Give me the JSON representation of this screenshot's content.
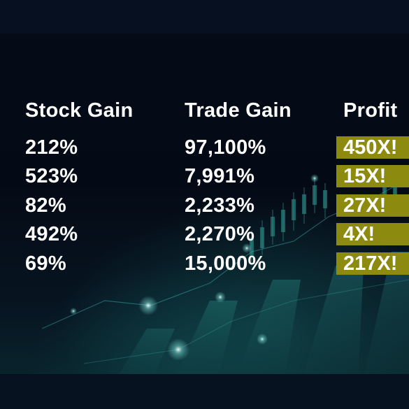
{
  "table": {
    "headers": [
      "Stock Gain",
      "Trade Gain",
      "Profit"
    ],
    "rows": [
      {
        "stock_gain": "212%",
        "trade_gain": "97,100%",
        "profit": "450X!"
      },
      {
        "stock_gain": "523%",
        "trade_gain": "7,991%",
        "profit": "15X!"
      },
      {
        "stock_gain": "82%",
        "trade_gain": "2,233%",
        "profit": "27X!"
      },
      {
        "stock_gain": "492%",
        "trade_gain": "2,270%",
        "profit": "4X!"
      },
      {
        "stock_gain": "69%",
        "trade_gain": "15,000%",
        "profit": "217X!"
      }
    ]
  },
  "colors": {
    "background": "#040a16",
    "profit_highlight": "#8d8a10",
    "text": "#ffffff",
    "chart_glow": "#1f7a78"
  },
  "background_art": {
    "description_icon": "stock-candlestick-chart-icon"
  }
}
